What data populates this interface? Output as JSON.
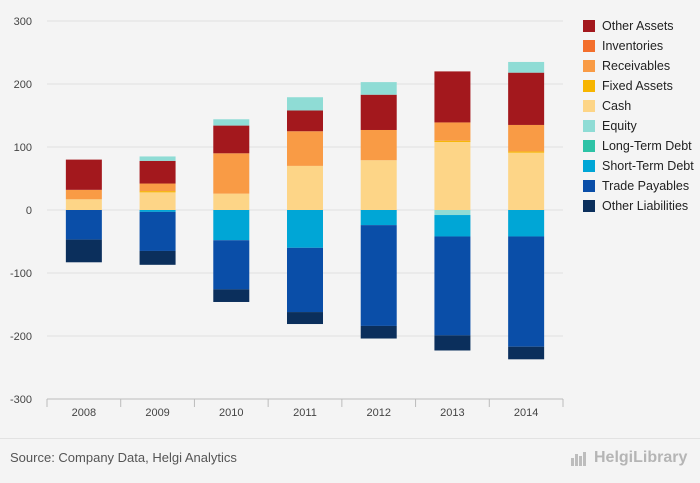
{
  "chart_data": {
    "type": "bar",
    "stacked": true,
    "categories": [
      "2008",
      "2009",
      "2010",
      "2011",
      "2012",
      "2013",
      "2014"
    ],
    "ylim": [
      -300,
      300
    ],
    "yticks": [
      300,
      200,
      100,
      0,
      -100,
      -200,
      -300
    ],
    "grid": true,
    "legend_position": "right",
    "assets": [
      {
        "name": "Cash",
        "color": "#fdd587",
        "values": [
          17,
          28,
          26,
          70,
          79,
          108,
          91
        ]
      },
      {
        "name": "Fixed Assets",
        "color": "#f7b500",
        "values": [
          0,
          2,
          0,
          0,
          0,
          2,
          2
        ]
      },
      {
        "name": "Receivables",
        "color": "#f99b45",
        "values": [
          15,
          12,
          64,
          55,
          48,
          29,
          42
        ]
      },
      {
        "name": "Inventories",
        "color": "#f36f2c",
        "values": [
          0,
          0,
          0,
          0,
          0,
          0,
          0
        ]
      },
      {
        "name": "Other Assets",
        "color": "#a3181d",
        "values": [
          48,
          36,
          44,
          33,
          56,
          81,
          83
        ]
      },
      {
        "name": "Equity",
        "color": "#8fdcd5",
        "values": [
          0,
          7,
          10,
          21,
          20,
          0,
          17
        ]
      }
    ],
    "liabilities": [
      {
        "name": "Equity",
        "color": "#8fdcd5",
        "values": [
          0,
          0,
          0,
          0,
          0,
          -8,
          0
        ]
      },
      {
        "name": "Long-Term Debt",
        "color": "#2ec3a6",
        "values": [
          0,
          0,
          0,
          0,
          0,
          0,
          0
        ]
      },
      {
        "name": "Short-Term Debt",
        "color": "#00a6d6",
        "values": [
          0,
          -3,
          -48,
          -60,
          -24,
          -34,
          -42
        ]
      },
      {
        "name": "Trade Payables",
        "color": "#0a4ea8",
        "values": [
          -47,
          -62,
          -78,
          -102,
          -160,
          -157,
          -175
        ]
      },
      {
        "name": "Other Liabilities",
        "color": "#0b2f5c",
        "values": [
          -36,
          -22,
          -20,
          -19,
          -20,
          -24,
          -20
        ]
      }
    ],
    "legend": [
      {
        "name": "Other Assets",
        "color": "#a3181d"
      },
      {
        "name": "Inventories",
        "color": "#f36f2c"
      },
      {
        "name": "Receivables",
        "color": "#f99b45"
      },
      {
        "name": "Fixed Assets",
        "color": "#f7b500"
      },
      {
        "name": "Cash",
        "color": "#fdd587"
      },
      {
        "name": "Equity",
        "color": "#8fdcd5"
      },
      {
        "name": "Long-Term Debt",
        "color": "#2ec3a6"
      },
      {
        "name": "Short-Term Debt",
        "color": "#00a6d6"
      },
      {
        "name": "Trade Payables",
        "color": "#0a4ea8"
      },
      {
        "name": "Other Liabilities",
        "color": "#0b2f5c"
      }
    ]
  },
  "source_text": "Source: Company Data, Helgi Analytics",
  "brand": {
    "name": "HelgiLibrary",
    "icon": "helgi-logo-icon",
    "color": "#b5b5b5"
  }
}
